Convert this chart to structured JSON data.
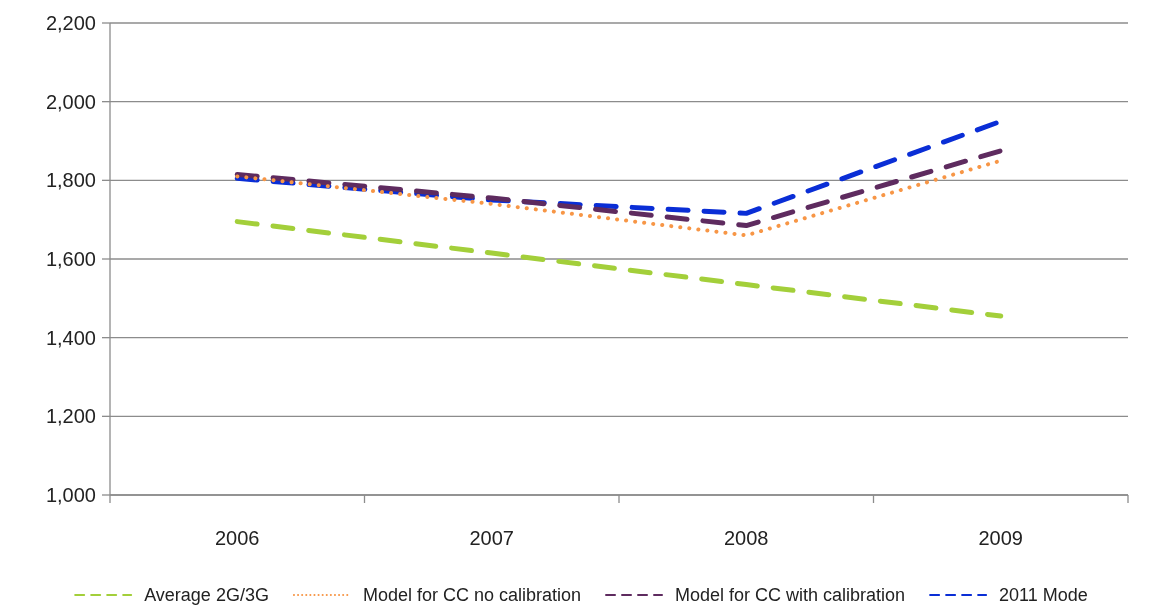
{
  "chart_data": {
    "type": "line",
    "categories": [
      "2006",
      "2007",
      "2008",
      "2009"
    ],
    "series": [
      {
        "name": "Average 2G/3G",
        "color": "#a3cf3a",
        "values": [
          1695,
          1615,
          1535,
          1455
        ],
        "line_style": "dashed"
      },
      {
        "name": "Model for CC no calibration",
        "color": "#f79646",
        "values": [
          1810,
          1740,
          1660,
          1850
        ],
        "line_style": "dotted"
      },
      {
        "name": "Model for CC with calibration",
        "color": "#5e2b5f",
        "values": [
          1815,
          1755,
          1685,
          1875
        ],
        "line_style": "dashed"
      },
      {
        "name": "2011 Mode",
        "color": "#0a2ed6",
        "values": [
          1805,
          1750,
          1716,
          1950
        ],
        "line_style": "dashed"
      }
    ],
    "ylim": [
      1000,
      2200
    ],
    "yticks": [
      {
        "value": 1000,
        "label": "1,000"
      },
      {
        "value": 1200,
        "label": "1,200"
      },
      {
        "value": 1400,
        "label": "1,400"
      },
      {
        "value": 1600,
        "label": "1,600"
      },
      {
        "value": 1800,
        "label": "1,800"
      },
      {
        "value": 2000,
        "label": "2,000"
      },
      {
        "value": 2200,
        "label": "2,200"
      }
    ],
    "grid": "y",
    "legend": "bottom"
  }
}
